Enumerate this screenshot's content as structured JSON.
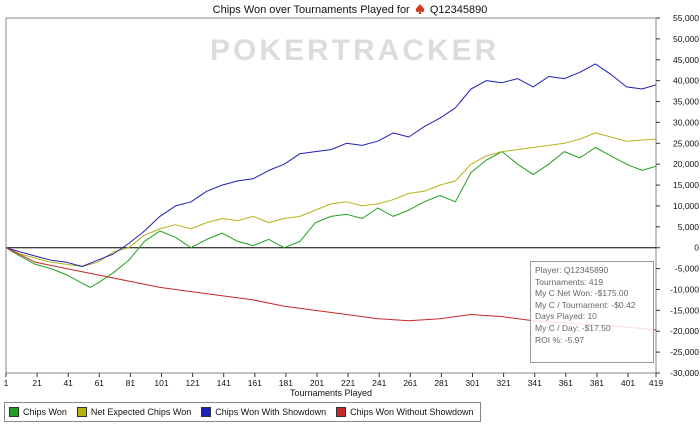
{
  "chart_data": {
    "type": "line",
    "title_prefix": "Chips Won over Tournaments Played for",
    "title_player": "Q12345890",
    "watermark": "POKERTRACKER",
    "xlabel": "Tournaments Played",
    "ylabel": "",
    "xlim": [
      1,
      419
    ],
    "ylim": [
      -30000,
      55000
    ],
    "x_ticks": [
      1,
      21,
      41,
      61,
      81,
      101,
      121,
      141,
      161,
      181,
      201,
      221,
      241,
      261,
      281,
      301,
      321,
      341,
      361,
      381,
      401,
      419
    ],
    "y_ticks": [
      -30000,
      -25000,
      -20000,
      -15000,
      -10000,
      -5000,
      0,
      5000,
      10000,
      15000,
      20000,
      25000,
      30000,
      35000,
      40000,
      45000,
      50000,
      55000
    ],
    "y_tick_labels": [
      "-30,000",
      "-25,000",
      "-20,000",
      "-15,000",
      "-10,000",
      "-5,000",
      "0",
      "5,000",
      "10,000",
      "15,000",
      "20,000",
      "25,000",
      "30,000",
      "35,000",
      "40,000",
      "45,000",
      "50,000",
      "55,000"
    ],
    "series": [
      {
        "name": "Chips Won",
        "color": "#22a022",
        "x": [
          1,
          10,
          20,
          30,
          40,
          50,
          55,
          60,
          70,
          80,
          90,
          100,
          110,
          120,
          130,
          140,
          150,
          160,
          170,
          180,
          190,
          200,
          210,
          220,
          230,
          240,
          250,
          260,
          270,
          280,
          290,
          300,
          310,
          320,
          330,
          340,
          350,
          360,
          370,
          380,
          390,
          400,
          410,
          419
        ],
        "y": [
          0,
          -2000,
          -4000,
          -5000,
          -6500,
          -8500,
          -9500,
          -8500,
          -6000,
          -3000,
          1500,
          4000,
          2500,
          0,
          2000,
          3500,
          1500,
          500,
          2000,
          0,
          1500,
          6000,
          7500,
          8000,
          7000,
          9500,
          7500,
          9000,
          11000,
          12500,
          11000,
          18000,
          21000,
          23000,
          20000,
          17500,
          20000,
          23000,
          21500,
          24000,
          22000,
          20000,
          18500,
          19500
        ]
      },
      {
        "name": "Net Expected Chips Won",
        "color": "#b4b418",
        "x": [
          1,
          10,
          20,
          30,
          40,
          50,
          60,
          70,
          80,
          90,
          100,
          110,
          120,
          130,
          140,
          150,
          160,
          170,
          180,
          190,
          200,
          210,
          220,
          230,
          240,
          250,
          260,
          270,
          280,
          290,
          300,
          310,
          320,
          330,
          340,
          350,
          360,
          370,
          380,
          390,
          400,
          410,
          419
        ],
        "y": [
          0,
          -1500,
          -2500,
          -3500,
          -4000,
          -4500,
          -3500,
          -1000,
          0,
          3000,
          4500,
          5500,
          4500,
          6000,
          7000,
          6500,
          7500,
          6000,
          7000,
          7500,
          9000,
          10500,
          11000,
          10000,
          10500,
          11500,
          13000,
          13500,
          15000,
          16000,
          20000,
          22000,
          23000,
          23500,
          24000,
          24500,
          25000,
          26000,
          27500,
          26500,
          25500,
          25800,
          26000
        ]
      },
      {
        "name": "Chips Won With Showdown",
        "color": "#2020b4",
        "x": [
          1,
          10,
          20,
          30,
          40,
          50,
          60,
          70,
          80,
          90,
          100,
          110,
          120,
          130,
          140,
          150,
          160,
          170,
          180,
          190,
          200,
          210,
          220,
          230,
          240,
          250,
          260,
          270,
          280,
          290,
          300,
          310,
          320,
          330,
          340,
          350,
          360,
          370,
          380,
          390,
          400,
          410,
          419
        ],
        "y": [
          0,
          -1000,
          -2000,
          -3000,
          -3500,
          -4500,
          -3000,
          -1500,
          1000,
          4000,
          7500,
          10000,
          11000,
          13500,
          15000,
          16000,
          16500,
          18500,
          20000,
          22500,
          23000,
          23500,
          25000,
          24500,
          25500,
          27500,
          26500,
          29000,
          31000,
          33500,
          38000,
          40000,
          39500,
          40500,
          38500,
          41000,
          40500,
          42000,
          44000,
          41500,
          38500,
          38000,
          39000
        ]
      },
      {
        "name": "Chips Won Without Showdown",
        "color": "#c82828",
        "x": [
          1,
          20,
          40,
          60,
          80,
          100,
          120,
          140,
          160,
          180,
          200,
          220,
          240,
          260,
          280,
          300,
          320,
          340,
          360,
          380,
          400,
          419
        ],
        "y": [
          0,
          -3500,
          -5000,
          -6500,
          -8000,
          -9500,
          -10500,
          -11500,
          -12500,
          -14000,
          -15000,
          -16000,
          -17000,
          -17500,
          -17000,
          -16000,
          -16500,
          -17500,
          -18000,
          -18500,
          -19000,
          -19700
        ]
      }
    ]
  },
  "info_box": {
    "player": "Player: Q12345890",
    "tournaments": "Tournaments: 419",
    "net_won": "My C Net Won: -$175.00",
    "per_tournament": "My C / Tournament: -$0.42",
    "days_played": "Days Played: 10",
    "per_day": "My C / Day: -$17.50",
    "roi": "ROI %: -5.97"
  }
}
